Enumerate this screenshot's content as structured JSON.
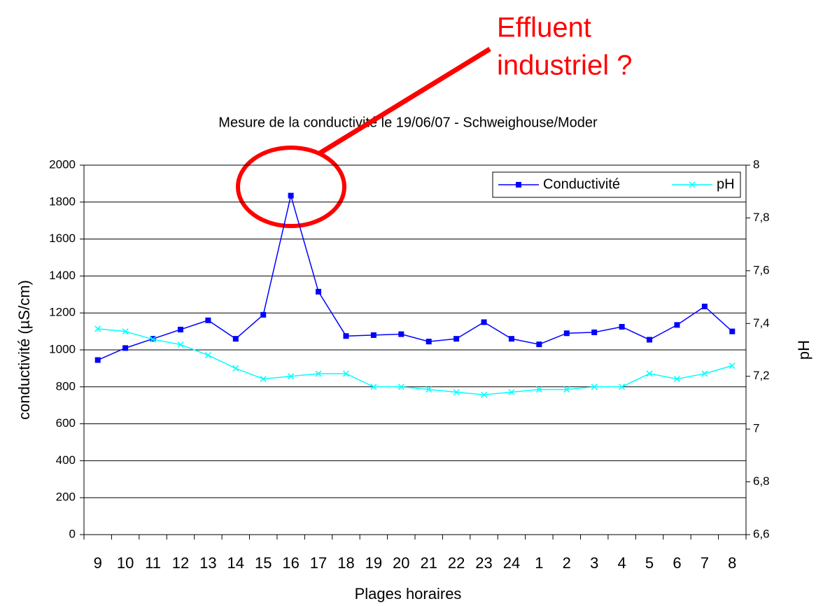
{
  "chart_data": {
    "type": "line",
    "title": "Mesure de la conductivité le 19/06/07 - Schweighouse/Moder",
    "annotation": [
      "Effluent",
      "industriel ?"
    ],
    "x_label": "Plages horaires",
    "y_label": "conductivité (µS/cm)",
    "y2_label": "pH",
    "categories": [
      "9",
      "10",
      "11",
      "12",
      "13",
      "14",
      "15",
      "16",
      "17",
      "18",
      "19",
      "20",
      "21",
      "22",
      "23",
      "24",
      "1",
      "2",
      "3",
      "4",
      "5",
      "6",
      "7",
      "8"
    ],
    "series": [
      {
        "name": "Conductivité",
        "color": "#0000ff",
        "marker": "square",
        "values": [
          945,
          1010,
          1060,
          1110,
          1160,
          1060,
          1190,
          1835,
          1315,
          1075,
          1080,
          1085,
          1045,
          1060,
          1150,
          1060,
          1030,
          1090,
          1095,
          1125,
          1055,
          1135,
          1235,
          1100
        ]
      },
      {
        "name": "pH",
        "color": "#00ffff",
        "marker": "x",
        "axis": "y2",
        "values": [
          7.38,
          7.37,
          7.34,
          7.32,
          7.28,
          7.23,
          7.19,
          7.2,
          7.21,
          7.21,
          7.16,
          7.16,
          7.15,
          7.14,
          7.13,
          7.14,
          7.15,
          7.15,
          7.16,
          7.16,
          7.21,
          7.19,
          7.21,
          7.24
        ]
      }
    ],
    "ylim": [
      0,
      2000
    ],
    "yticks": [
      0,
      200,
      400,
      600,
      800,
      1000,
      1200,
      1400,
      1600,
      1800,
      2000
    ],
    "y2lim": [
      6.6,
      8
    ],
    "y2ticks": [
      {
        "value": 6.6,
        "label": "6,6"
      },
      {
        "value": 6.8,
        "label": "6,8"
      },
      7,
      {
        "value": 7.2,
        "label": "7,2"
      },
      {
        "value": 7.4,
        "label": "7,4"
      },
      {
        "value": 7.6,
        "label": "7,6"
      },
      {
        "value": 7.8,
        "label": "7,8"
      },
      8
    ],
    "grid": true,
    "legend": "top-right"
  }
}
